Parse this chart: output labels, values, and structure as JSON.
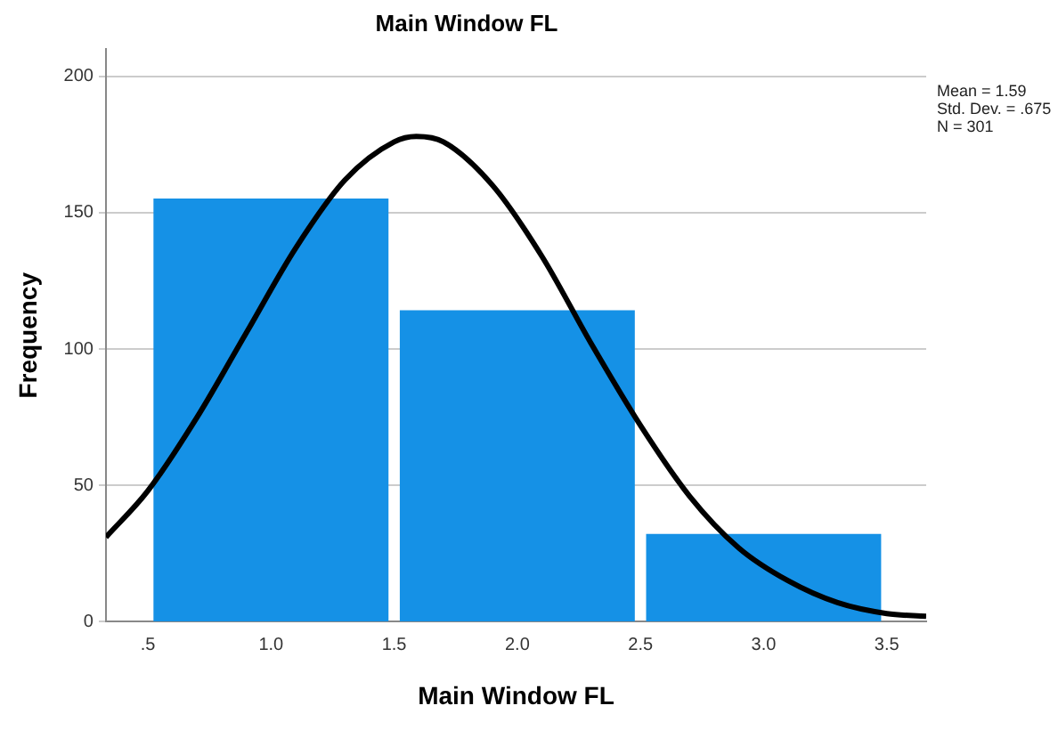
{
  "chart_data": {
    "type": "histogram",
    "title": "Main Window FL",
    "xlabel": "Main Window FL",
    "ylabel": "Frequency",
    "bins": [
      0.5,
      1.5,
      2.5,
      3.5
    ],
    "values": [
      155,
      114,
      32
    ],
    "color": "#1591e6",
    "series": [
      {
        "type": "line",
        "color": "#000000",
        "x": [
          0.33,
          0.5,
          0.7,
          0.9,
          1.1,
          1.3,
          1.5,
          1.59,
          1.7,
          1.9,
          2.1,
          2.3,
          2.5,
          2.7,
          2.9,
          3.1,
          3.3,
          3.5,
          3.66
        ],
        "values": [
          31,
          48,
          75,
          106,
          137,
          162,
          176,
          178,
          176,
          160,
          134,
          102,
          72,
          46,
          27,
          15,
          7,
          3,
          2
        ]
      }
    ],
    "xlim": [
      0.33,
      3.66
    ],
    "xticks": [
      {
        "value": 0.5,
        "label": ".5"
      },
      {
        "value": 1,
        "label": "1.0"
      },
      {
        "value": 1.5,
        "label": "1.5"
      },
      {
        "value": 2,
        "label": "2.0"
      },
      {
        "value": 2.5,
        "label": "2.5"
      },
      {
        "value": 3,
        "label": "3.0"
      },
      {
        "value": 3.5,
        "label": "3.5"
      }
    ],
    "ylim": [
      0,
      210
    ],
    "yticks": [
      0,
      50,
      100,
      150,
      200
    ],
    "grid": "y",
    "legend": false,
    "annotations": [
      "Mean = 1.59",
      "Std. Dev. = .675",
      "N = 301"
    ]
  }
}
